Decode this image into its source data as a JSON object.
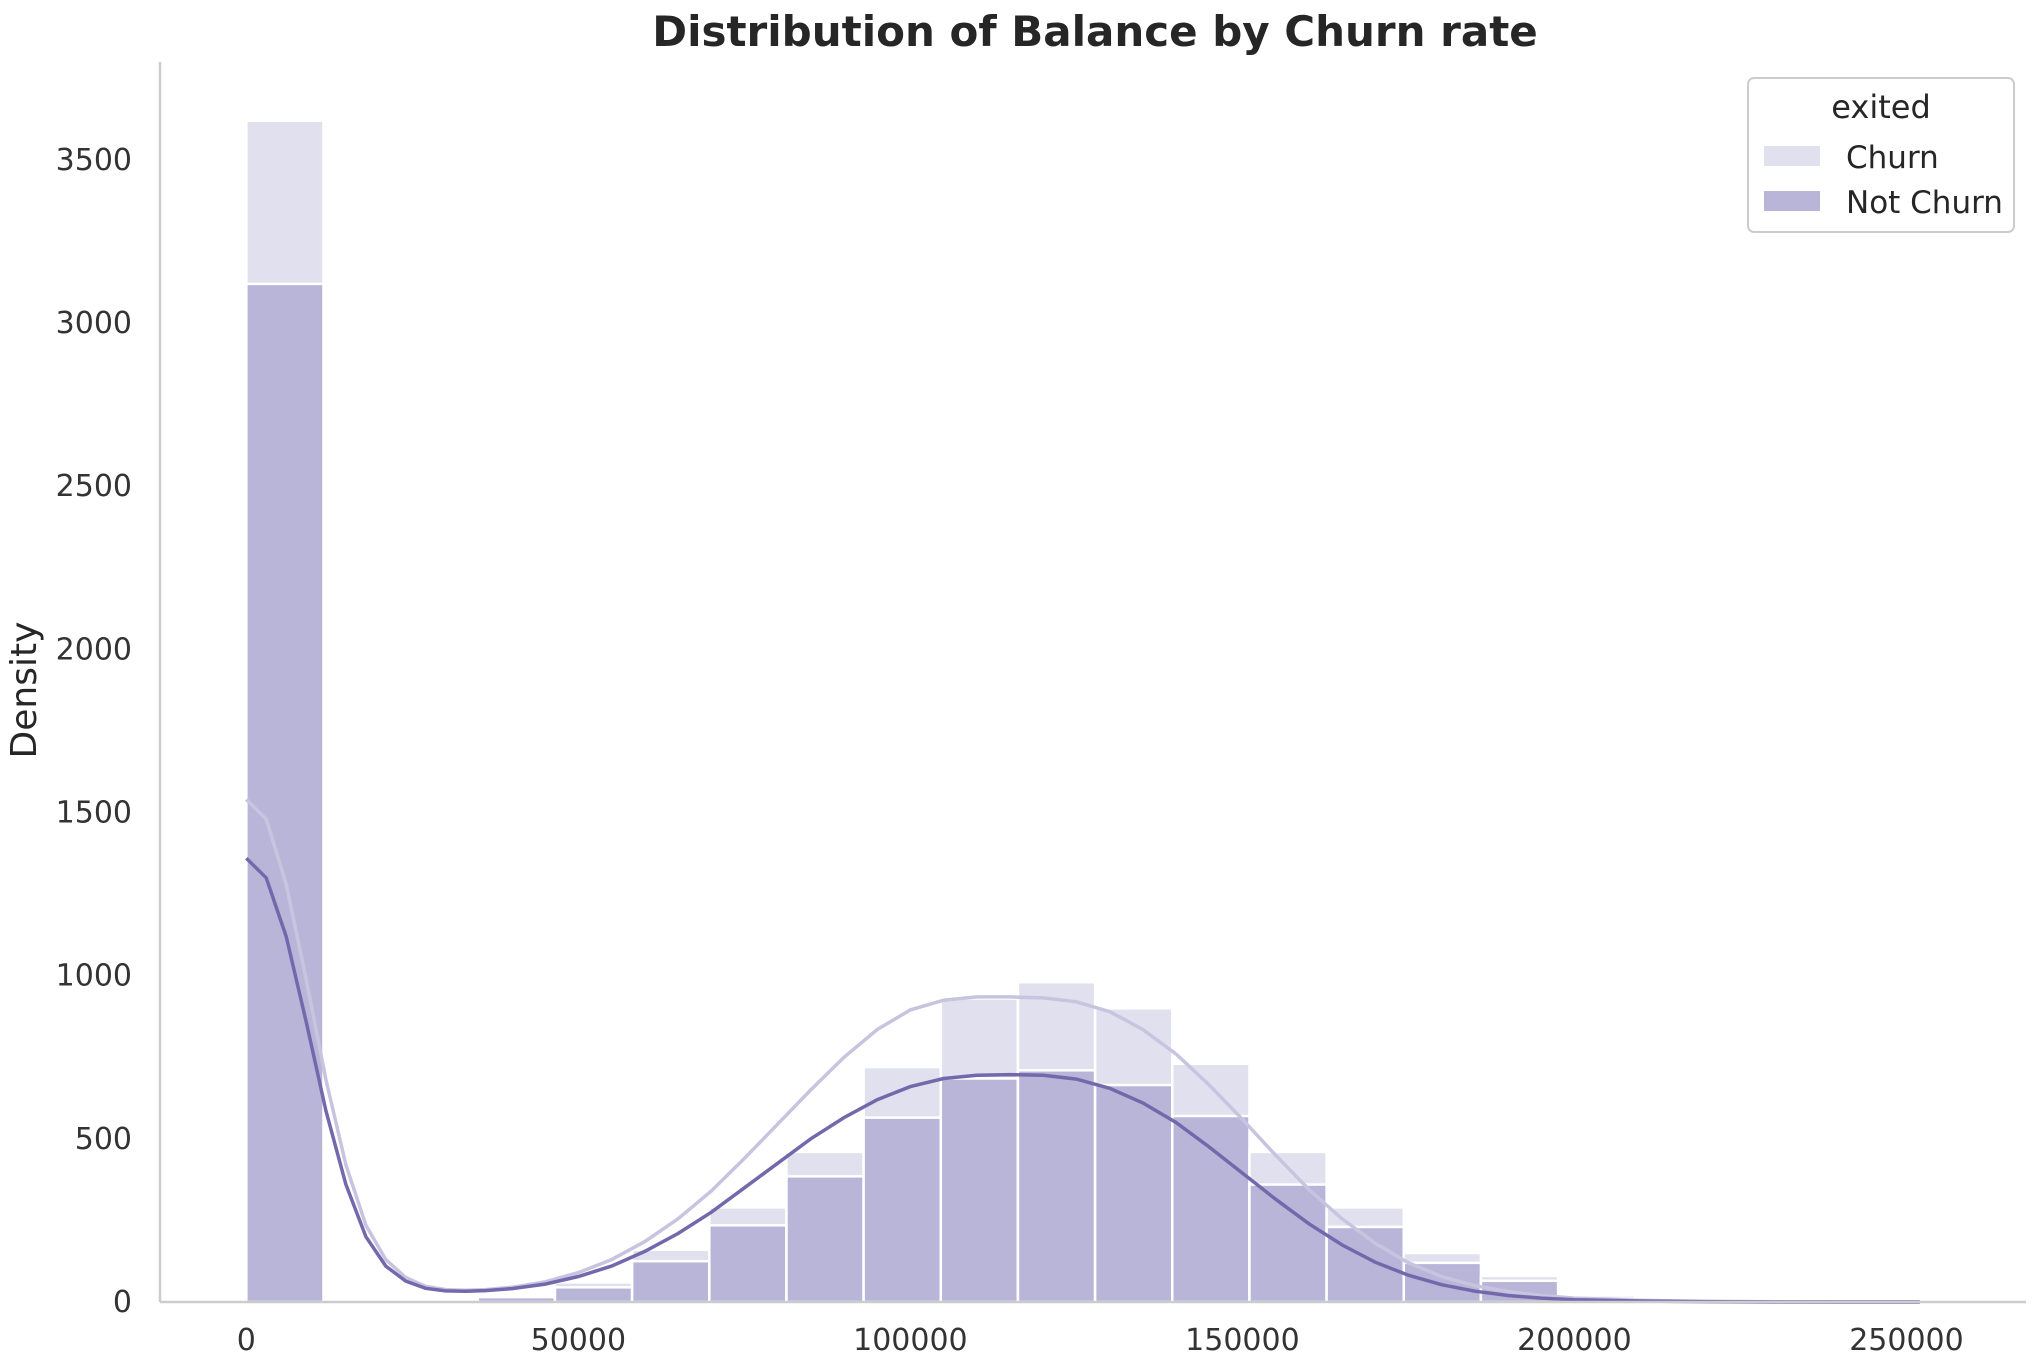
{
  "chart_data": {
    "type": "bar",
    "title": "Distribution of Balance by Churn rate",
    "xlabel": "",
    "ylabel": "Density",
    "xlim": [
      -13000,
      268000
    ],
    "ylim": [
      0,
      3800
    ],
    "x_ticks": [
      0,
      50000,
      100000,
      150000,
      200000,
      250000
    ],
    "y_ticks": [
      0,
      500,
      1000,
      1500,
      2000,
      2500,
      3000,
      3500
    ],
    "grid": false,
    "legend": {
      "title": "exited",
      "placement": "top-right"
    },
    "stacked": true,
    "bin_edges": [
      0,
      11620,
      23240,
      34860,
      46480,
      58100,
      69720,
      81340,
      92960,
      104580,
      116200,
      127820,
      139440,
      151060,
      162680,
      174300,
      185920,
      197540,
      209160,
      220780,
      232400,
      244020,
      255640
    ],
    "series": [
      {
        "name": "Churn",
        "color": "#e1e0ee",
        "total_counts": [
          3620,
          0,
          0,
          20,
          60,
          160,
          290,
          460,
          720,
          930,
          980,
          900,
          730,
          460,
          290,
          150,
          80,
          20,
          5,
          3,
          2,
          1
        ],
        "kde_x": [
          0,
          3000,
          6000,
          9000,
          12000,
          15000,
          18000,
          21000,
          24000,
          27000,
          30000,
          33000,
          36000,
          40000,
          45000,
          50000,
          55000,
          60000,
          65000,
          70000,
          75000,
          80000,
          85000,
          90000,
          95000,
          100000,
          105000,
          110000,
          115000,
          120000,
          125000,
          130000,
          135000,
          140000,
          145000,
          150000,
          155000,
          160000,
          165000,
          170000,
          175000,
          180000,
          185000,
          190000,
          195000,
          200000,
          210000,
          220000,
          230000,
          240000,
          252000
        ],
        "kde_y": [
          1540,
          1480,
          1280,
          990,
          680,
          420,
          235,
          130,
          75,
          48,
          38,
          36,
          38,
          45,
          62,
          90,
          130,
          185,
          255,
          340,
          440,
          545,
          650,
          750,
          835,
          895,
          925,
          935,
          935,
          932,
          920,
          890,
          835,
          760,
          665,
          560,
          450,
          345,
          255,
          180,
          120,
          78,
          50,
          32,
          20,
          12,
          5,
          2,
          1,
          0,
          0
        ]
      },
      {
        "name": "Not Churn",
        "color": "#b9b5d8",
        "counts": [
          3120,
          0,
          0,
          15,
          45,
          125,
          235,
          385,
          565,
          685,
          710,
          665,
          570,
          360,
          230,
          120,
          65,
          10,
          3,
          2,
          1,
          1
        ],
        "kde_x": [
          0,
          3000,
          6000,
          9000,
          12000,
          15000,
          18000,
          21000,
          24000,
          27000,
          30000,
          33000,
          36000,
          40000,
          45000,
          50000,
          55000,
          60000,
          65000,
          70000,
          75000,
          80000,
          85000,
          90000,
          95000,
          100000,
          105000,
          110000,
          115000,
          120000,
          125000,
          130000,
          135000,
          140000,
          145000,
          150000,
          155000,
          160000,
          165000,
          170000,
          175000,
          180000,
          185000,
          190000,
          195000,
          200000,
          210000,
          220000,
          230000,
          240000,
          252000
        ],
        "kde_y": [
          1360,
          1300,
          1120,
          860,
          585,
          360,
          200,
          110,
          64,
          42,
          34,
          33,
          35,
          41,
          55,
          78,
          110,
          155,
          210,
          275,
          350,
          425,
          500,
          565,
          620,
          660,
          685,
          695,
          697,
          695,
          683,
          655,
          610,
          550,
          475,
          395,
          315,
          240,
          175,
          122,
          82,
          53,
          33,
          20,
          12,
          7,
          3,
          1,
          0,
          0,
          0
        ]
      }
    ]
  }
}
